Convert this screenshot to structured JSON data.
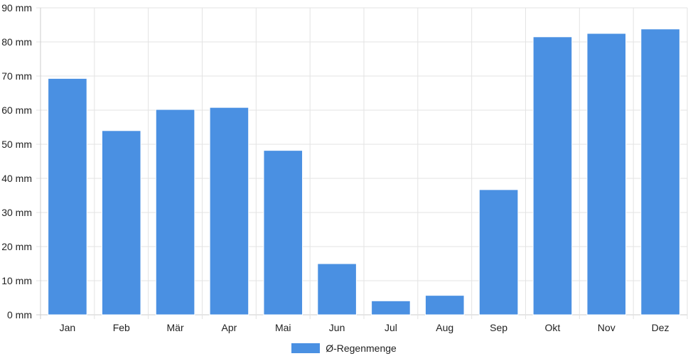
{
  "chart_data": {
    "type": "bar",
    "title": "",
    "xlabel": "",
    "ylabel": "",
    "ylim": [
      0,
      90
    ],
    "y_tick_step": 10,
    "y_tick_unit": "mm",
    "grid": true,
    "legend_position": "bottom",
    "categories": [
      "Jan",
      "Feb",
      "Mär",
      "Apr",
      "Mai",
      "Jun",
      "Jul",
      "Aug",
      "Sep",
      "Okt",
      "Nov",
      "Dez"
    ],
    "series": [
      {
        "name": "Ø-Regenmenge",
        "color": "#4a90e2",
        "values": [
          69.3,
          54.0,
          60.2,
          60.8,
          48.2,
          15.0,
          4.1,
          5.7,
          36.7,
          81.5,
          82.5,
          83.8
        ]
      }
    ]
  },
  "colors": {
    "grid": "#e3e3e3",
    "axis": "#cccccc",
    "bar_edge": "#ffffff"
  }
}
